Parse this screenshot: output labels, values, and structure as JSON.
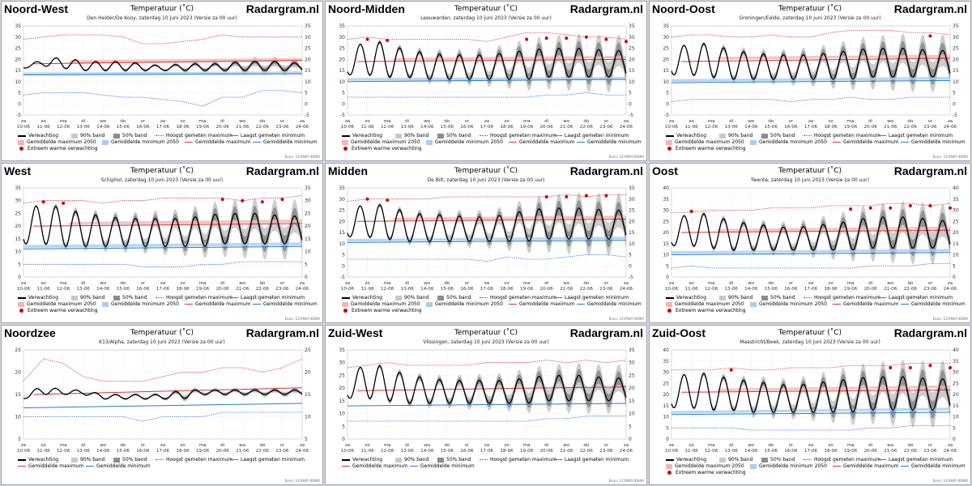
{
  "brand": "Radargram.nl",
  "chart_title": "Temperatuur (˚C)",
  "source": "Bron: ECMWF/KNMI",
  "x_dates": [
    "10-06",
    "11-06",
    "12-06",
    "13-06",
    "14-06",
    "15-06",
    "16-06",
    "17-06",
    "18-06",
    "19-06",
    "20-06",
    "21-06",
    "22-06",
    "23-06",
    "24-06"
  ],
  "x_days": [
    "za",
    "zo",
    "ma",
    "di",
    "wo",
    "do",
    "vr",
    "za",
    "zo",
    "ma",
    "di",
    "wo",
    "do",
    "vr",
    "za"
  ],
  "legend_labels": {
    "forecast": "Verwachting",
    "band90": "90% band",
    "band50": "50% band",
    "highest_max": "Hoogst gemeten maximum",
    "lowest_min": "Laagst gemeten minimum",
    "avg_max_2050": "Gemiddelde maximum 2050",
    "avg_min_2050": "Gemiddelde minimum 2050",
    "avg_max": "Gemiddelde maximum",
    "avg_min": "Gemiddelde minimum",
    "extreme": "Extreem warme verwachting"
  },
  "colors": {
    "forecast": "#000000",
    "band90": "#c8c8c8",
    "band50": "#8c8c8c",
    "highest_max": "#dd2222",
    "lowest_min": "#2266dd",
    "avg_max": "#e03030",
    "avg_min": "#2a7ad0",
    "avg_max_2050": "#f4b4b4",
    "avg_min_2050": "#a8cdf0",
    "extreme": "#cc0000"
  },
  "chart_data": [
    {
      "type": "line",
      "region": "Noord-West",
      "station": "Den Helder/De Kooy, zaterdag 10 juni 2023 (Versie za 00 uur)",
      "ylim": [
        -5,
        35
      ],
      "yticks": [
        -5,
        0,
        5,
        10,
        15,
        20,
        25,
        30,
        35
      ],
      "max_series": [
        17,
        20,
        21,
        19,
        19,
        19,
        18,
        17,
        18,
        18,
        18,
        19,
        19,
        19,
        18
      ],
      "min_series": [
        16,
        17,
        16,
        15,
        15,
        15,
        15,
        15,
        15,
        15,
        15,
        15,
        15,
        15,
        15
      ],
      "highest_max": [
        29,
        30,
        31,
        31,
        31,
        30,
        27,
        27,
        28,
        29,
        31,
        30,
        30,
        30,
        30
      ],
      "lowest_min": [
        4,
        5,
        5,
        5,
        4,
        3,
        3,
        2,
        1,
        -1,
        3,
        3,
        6,
        6,
        5
      ],
      "avg_max": [
        18,
        19.5
      ],
      "avg_min": [
        13,
        13.5
      ],
      "avg_max_2050": [
        19,
        20
      ],
      "avg_min_2050": [
        13.5,
        14
      ],
      "extreme_markers": [],
      "legend_variant": "full"
    },
    {
      "type": "line",
      "region": "Noord-Midden",
      "station": "Leeuwarden, zaterdag 10 juni 2023 (Versie za 00 uur)",
      "ylim": [
        -5,
        35
      ],
      "yticks": [
        -5,
        0,
        5,
        10,
        15,
        20,
        25,
        30,
        35
      ],
      "max_series": [
        23,
        29,
        27,
        24,
        23,
        22,
        22,
        22,
        23,
        24,
        25,
        25,
        25,
        24,
        24
      ],
      "min_series": [
        13,
        13,
        12,
        12,
        11,
        11,
        11,
        11,
        11,
        11,
        12,
        12,
        12,
        12,
        12
      ],
      "highest_max": [
        29,
        30,
        29,
        29,
        29,
        29,
        29,
        28,
        30,
        32,
        32,
        31,
        30,
        30,
        29
      ],
      "lowest_min": [
        3,
        3,
        3,
        3,
        3,
        3,
        3,
        3,
        3,
        3,
        4,
        4,
        5,
        4,
        4
      ],
      "avg_max": [
        19,
        20
      ],
      "avg_min": [
        10,
        11
      ],
      "avg_max_2050": [
        20,
        21
      ],
      "avg_min_2050": [
        11,
        11.5
      ],
      "extreme_markers": [
        [
          1,
          29
        ],
        [
          2,
          28.5
        ],
        [
          9,
          29
        ],
        [
          10,
          29.5
        ],
        [
          11,
          29.5
        ],
        [
          12,
          30
        ],
        [
          13,
          29
        ],
        [
          14,
          28
        ]
      ],
      "legend_variant": "full"
    },
    {
      "type": "line",
      "region": "Noord-Oost",
      "station": "Groningen/Eelde, zaterdag 10 juni 2023 (Versie za 00 uur)",
      "ylim": [
        -5,
        35
      ],
      "yticks": [
        -5,
        0,
        5,
        10,
        15,
        20,
        25,
        30,
        35
      ],
      "max_series": [
        25,
        27,
        27,
        24,
        23,
        22,
        22,
        22,
        23,
        24,
        25,
        25,
        25,
        24,
        24
      ],
      "min_series": [
        13,
        13,
        12,
        11,
        11,
        11,
        11,
        11,
        11,
        11,
        12,
        12,
        12,
        12,
        12
      ],
      "highest_max": [
        30,
        31,
        31,
        30,
        30,
        31,
        30,
        30,
        32,
        33,
        33,
        33,
        32,
        32,
        31
      ],
      "lowest_min": [
        1,
        2,
        2,
        2,
        2,
        2,
        1,
        2,
        2,
        3,
        2,
        2,
        3,
        3,
        3
      ],
      "avg_max": [
        19,
        20.5
      ],
      "avg_min": [
        9.5,
        10.5
      ],
      "avg_max_2050": [
        20.5,
        21.5
      ],
      "avg_min_2050": [
        10.5,
        11.5
      ],
      "extreme_markers": [
        [
          13,
          30.5
        ]
      ],
      "legend_variant": "full"
    },
    {
      "type": "line",
      "region": "West",
      "station": "Schiphol, zaterdag 10 juni 2023 (Versie za 00 uur)",
      "ylim": [
        0,
        35
      ],
      "yticks": [
        0,
        5,
        10,
        15,
        20,
        25,
        30,
        35
      ],
      "max_series": [
        26,
        29,
        27,
        25,
        24,
        23,
        23,
        23,
        23,
        24,
        25,
        25,
        25,
        24,
        24
      ],
      "min_series": [
        13,
        13,
        12,
        12,
        12,
        12,
        12,
        12,
        12,
        12,
        13,
        13,
        13,
        13,
        13
      ],
      "highest_max": [
        29,
        30,
        30,
        30,
        29,
        30,
        30,
        31,
        31,
        31,
        31,
        30,
        31,
        31,
        32
      ],
      "lowest_min": [
        5,
        5,
        5,
        5,
        5,
        5,
        4,
        4,
        4,
        5,
        5,
        6,
        6,
        6,
        6
      ],
      "avg_max": [
        20,
        21
      ],
      "avg_min": [
        11,
        12
      ],
      "avg_max_2050": [
        21,
        22
      ],
      "avg_min_2050": [
        12,
        13
      ],
      "extreme_markers": [
        [
          1,
          29.5
        ],
        [
          2,
          29
        ],
        [
          10,
          30.5
        ],
        [
          11,
          30
        ],
        [
          12,
          29.5
        ],
        [
          13,
          30.5
        ]
      ],
      "legend_variant": "full"
    },
    {
      "type": "line",
      "region": "Midden",
      "station": "De Bilt, zaterdag 10 juni 2023 (Versie za 00 uur)",
      "ylim": [
        -5,
        35
      ],
      "yticks": [
        -5,
        0,
        5,
        10,
        15,
        20,
        25,
        30,
        35
      ],
      "max_series": [
        25,
        28,
        27,
        24,
        23,
        23,
        22,
        22,
        23,
        25,
        26,
        26,
        26,
        25,
        25
      ],
      "min_series": [
        13,
        13,
        12,
        11,
        11,
        11,
        11,
        11,
        11,
        11,
        12,
        12,
        12,
        12,
        12
      ],
      "highest_max": [
        29,
        30,
        30,
        30,
        30,
        31,
        31,
        31,
        31,
        31,
        31,
        32,
        31,
        32,
        32
      ],
      "lowest_min": [
        3,
        3,
        3,
        3,
        3,
        3,
        3,
        2,
        4,
        3,
        3,
        4,
        5,
        5,
        4
      ],
      "avg_max": [
        20,
        21
      ],
      "avg_min": [
        10.5,
        11.5
      ],
      "avg_max_2050": [
        21,
        22
      ],
      "avg_min_2050": [
        11.5,
        12.5
      ],
      "extreme_markers": [
        [
          1,
          30
        ],
        [
          2,
          29.5
        ],
        [
          10,
          31
        ],
        [
          11,
          31
        ],
        [
          12,
          31.5
        ],
        [
          13,
          31.5
        ]
      ],
      "legend_variant": "full"
    },
    {
      "type": "line",
      "region": "Oost",
      "station": "Twente, zaterdag 10 juni 2023 (Versie za 00 uur)",
      "ylim": [
        0,
        40
      ],
      "yticks": [
        0,
        5,
        10,
        15,
        20,
        25,
        30,
        35,
        40
      ],
      "max_series": [
        25,
        29,
        28,
        25,
        24,
        23,
        22,
        23,
        24,
        25,
        27,
        27,
        27,
        26,
        25
      ],
      "min_series": [
        14,
        14,
        13,
        12,
        12,
        12,
        12,
        12,
        12,
        12,
        13,
        13,
        13,
        13,
        13
      ],
      "highest_max": [
        29,
        29,
        30,
        30,
        30,
        31,
        31,
        31,
        32,
        32,
        32,
        33,
        33,
        32,
        33
      ],
      "lowest_min": [
        4,
        5,
        4,
        4,
        4,
        4,
        4,
        4,
        4,
        4,
        5,
        5,
        5,
        6,
        6
      ],
      "avg_max": [
        20,
        21
      ],
      "avg_min": [
        10,
        11
      ],
      "avg_max_2050": [
        21,
        22
      ],
      "avg_min_2050": [
        11,
        12
      ],
      "extreme_markers": [
        [
          1,
          29.5
        ],
        [
          9,
          30.5
        ],
        [
          10,
          31
        ],
        [
          11,
          31
        ],
        [
          12,
          32
        ],
        [
          13,
          32
        ],
        [
          14,
          31
        ]
      ],
      "legend_variant": "full"
    },
    {
      "type": "line",
      "region": "Noordzee",
      "station": "K13/Alpha, zaterdag 10 juni 2023 (Versie za 00 uur)",
      "ylim": [
        5,
        25
      ],
      "yticks": [
        5,
        10,
        15,
        20,
        25
      ],
      "max_series": [
        15,
        17,
        16,
        16,
        15,
        15,
        15,
        15,
        16,
        16,
        16,
        16,
        16,
        16,
        16
      ],
      "min_series": [
        14,
        15,
        15,
        15,
        14,
        14,
        14,
        14,
        14,
        15,
        15,
        15,
        15,
        15,
        15
      ],
      "highest_max": [
        18,
        23,
        22,
        19,
        18,
        18,
        18,
        19,
        20,
        20,
        21,
        21,
        20,
        21,
        23
      ],
      "lowest_min": [
        10,
        10,
        10,
        10,
        10,
        10,
        9,
        10,
        10,
        10,
        11,
        11,
        11,
        11,
        11
      ],
      "avg_max": [
        15,
        16.5
      ],
      "avg_min": [
        12,
        13
      ],
      "avg_max_2050": null,
      "avg_min_2050": null,
      "extreme_markers": [],
      "legend_variant": "simple"
    },
    {
      "type": "line",
      "region": "Zuid-West",
      "station": "Vlissingen, zaterdag 10 juni 2023 (Versie za 00 uur)",
      "ylim": [
        0,
        35
      ],
      "yticks": [
        0,
        5,
        10,
        15,
        20,
        25,
        30,
        35
      ],
      "max_series": [
        25,
        30,
        28,
        25,
        24,
        23,
        23,
        23,
        23,
        24,
        25,
        25,
        25,
        24,
        24
      ],
      "min_series": [
        16,
        16,
        15,
        14,
        14,
        14,
        14,
        14,
        14,
        14,
        15,
        15,
        15,
        15,
        15
      ],
      "highest_max": [
        28,
        29,
        30,
        29,
        29,
        29,
        29,
        30,
        30,
        30,
        31,
        30,
        31,
        30,
        31
      ],
      "lowest_min": [
        7,
        7,
        7,
        7,
        7,
        7,
        7,
        7,
        7,
        7,
        8,
        8,
        9,
        9,
        9
      ],
      "avg_max": [
        19,
        20.5
      ],
      "avg_min": [
        13,
        14
      ],
      "avg_max_2050": null,
      "avg_min_2050": null,
      "extreme_markers": [],
      "legend_variant": "simple"
    },
    {
      "type": "line",
      "region": "Zuid-Oost",
      "station": "Maastricht/Beek, zaterdag 10 juni 2023 (Versie za 00 uur)",
      "ylim": [
        0,
        40
      ],
      "yticks": [
        0,
        5,
        10,
        15,
        20,
        25,
        30,
        35,
        40
      ],
      "max_series": [
        27,
        30,
        29,
        27,
        26,
        25,
        24,
        25,
        26,
        27,
        28,
        28,
        28,
        27,
        27
      ],
      "min_series": [
        14,
        14,
        13,
        13,
        12,
        12,
        12,
        12,
        12,
        12,
        13,
        13,
        13,
        13,
        13
      ],
      "highest_max": [
        31,
        31,
        31,
        32,
        31,
        31,
        32,
        32,
        32,
        33,
        33,
        33,
        34,
        34,
        34
      ],
      "lowest_min": [
        5,
        5,
        5,
        5,
        4,
        4,
        4,
        4,
        4,
        4,
        5,
        5,
        6,
        6,
        6
      ],
      "avg_max": [
        21,
        22
      ],
      "avg_min": [
        11,
        12
      ],
      "avg_max_2050": [
        22,
        23.5
      ],
      "avg_min_2050": [
        12,
        13.5
      ],
      "extreme_markers": [
        [
          3,
          31
        ],
        [
          11,
          32
        ],
        [
          12,
          32
        ],
        [
          13,
          33
        ],
        [
          14,
          32
        ]
      ],
      "legend_variant": "full"
    }
  ]
}
